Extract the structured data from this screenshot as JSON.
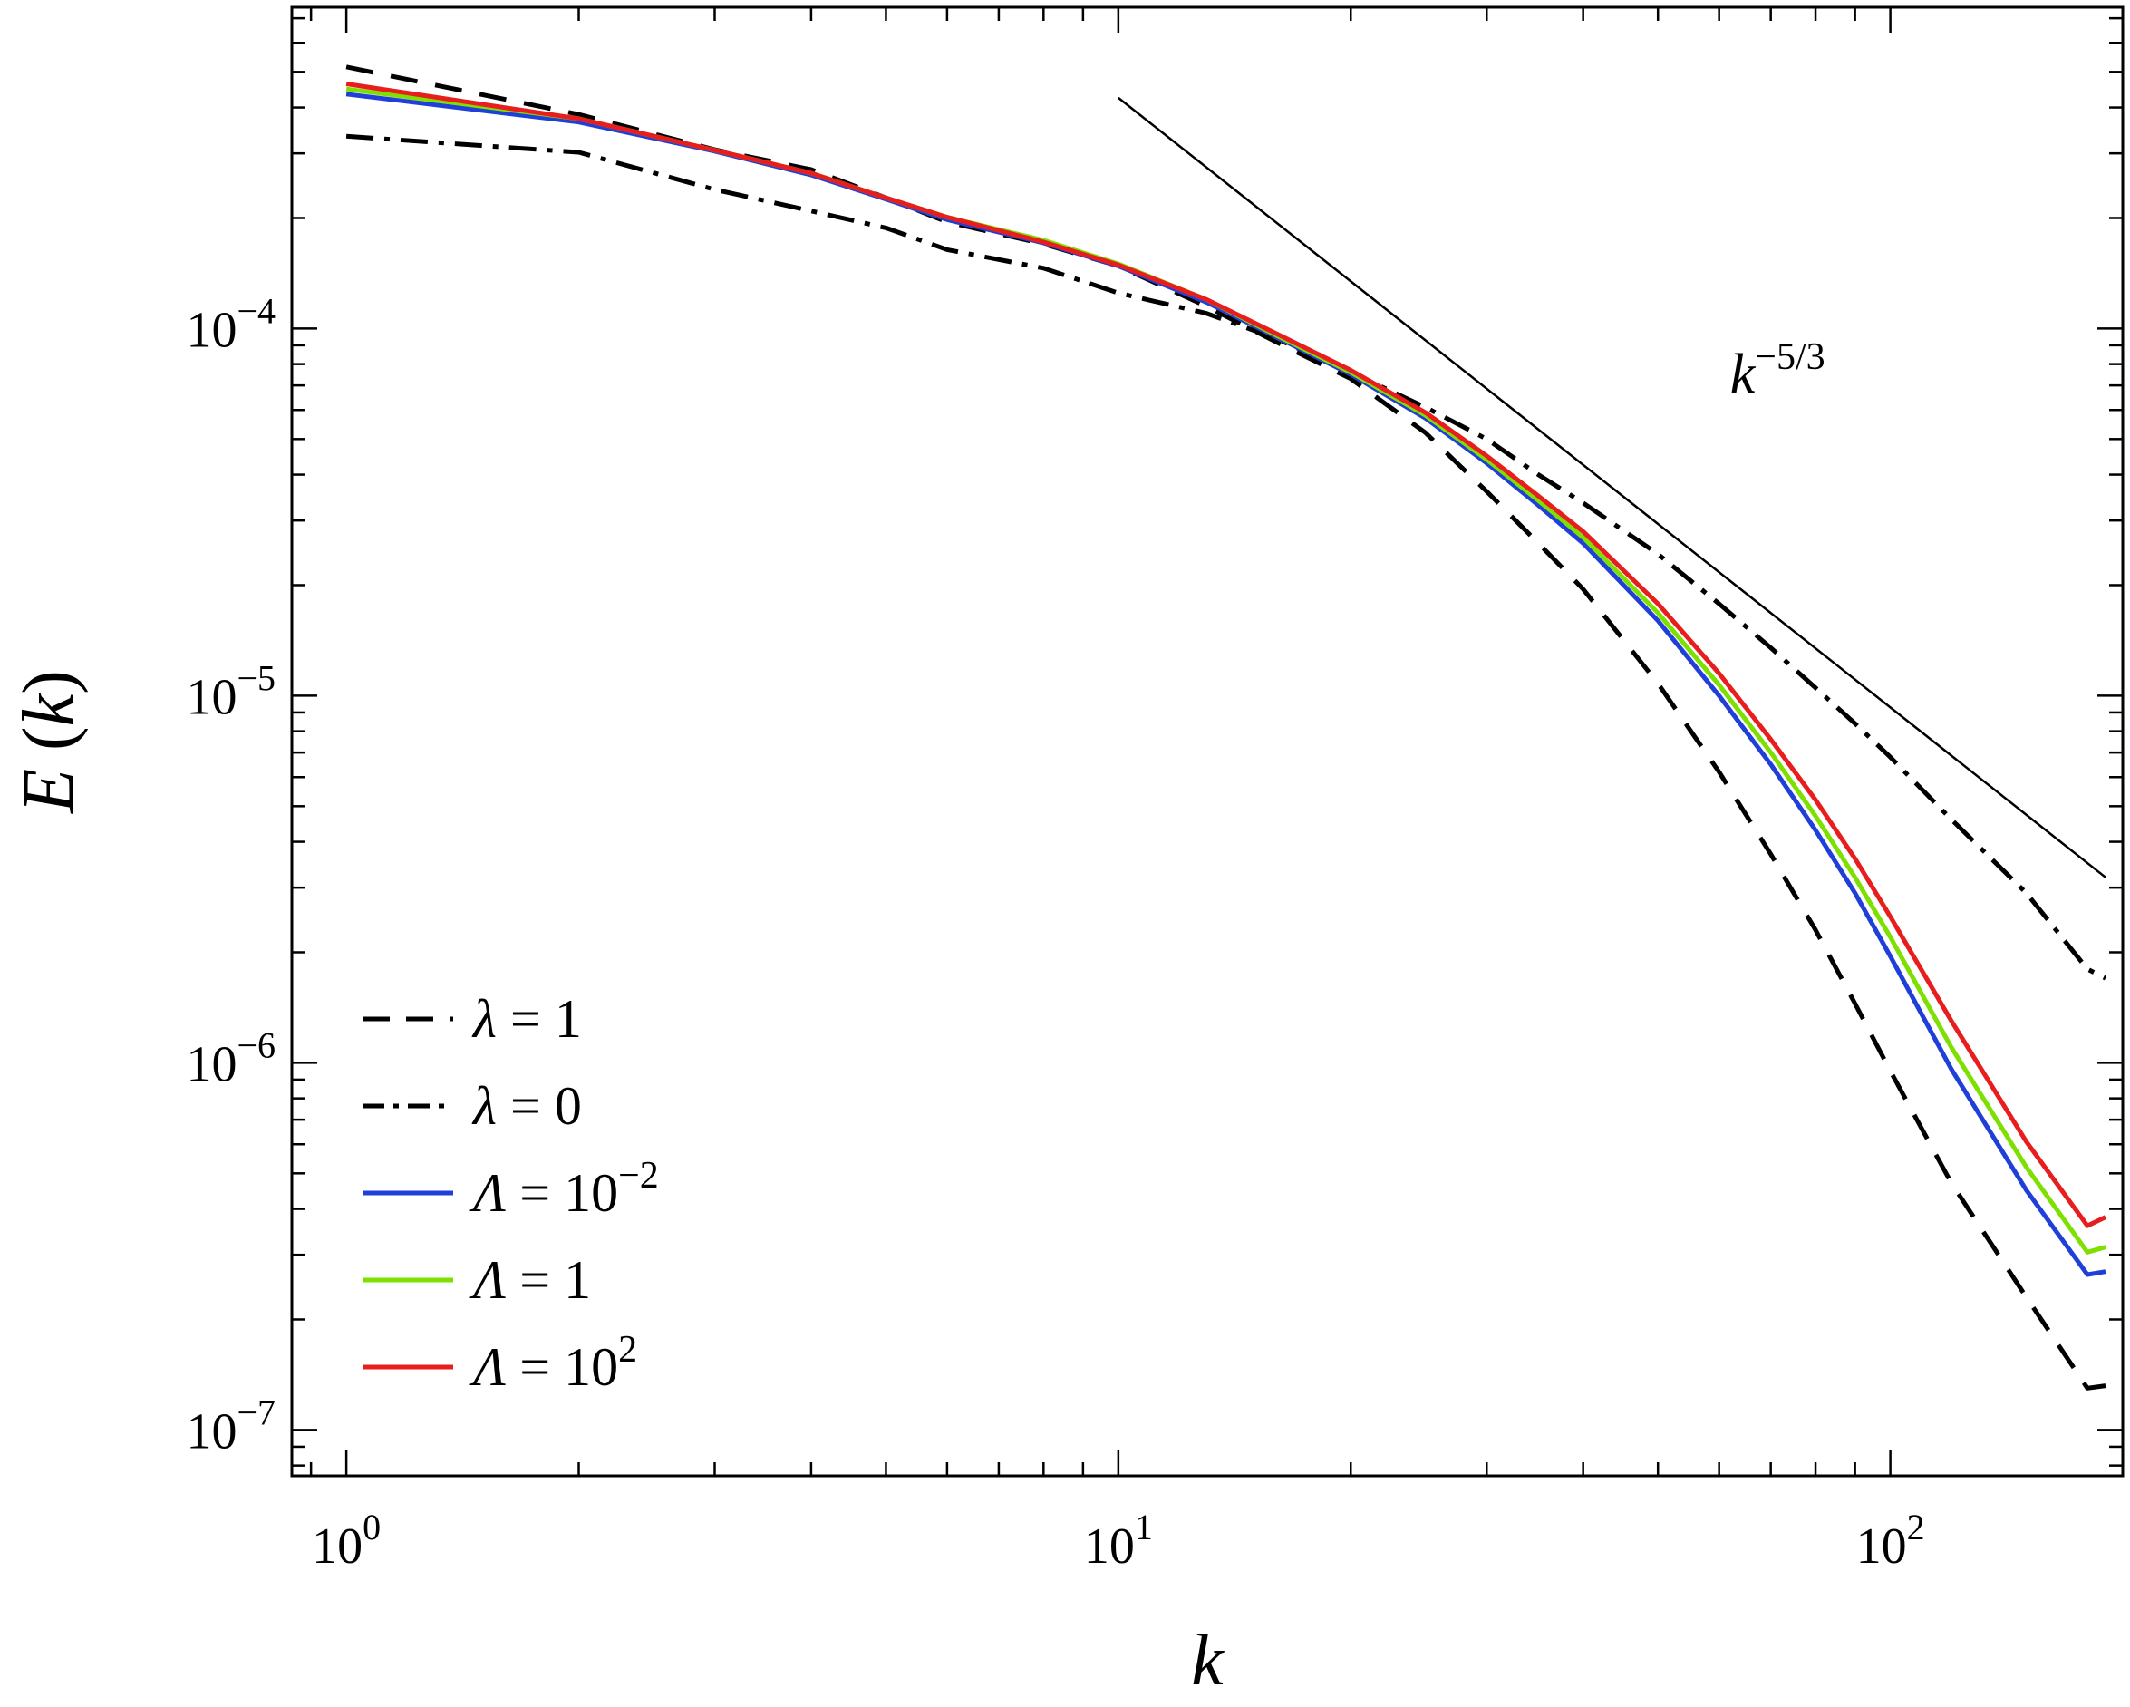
{
  "chart_data": {
    "type": "line",
    "xscale": "log",
    "yscale": "log",
    "xlim": [
      0.85,
      200
    ],
    "ylim": [
      7.5e-08,
      0.00075
    ],
    "xlabel": {
      "italic": "k"
    },
    "ylabel": {
      "italic_1": "E",
      "open": " (",
      "italic_2": "k",
      "close": ")"
    },
    "xticks": [
      {
        "value": 1,
        "base": "10",
        "exp": "0"
      },
      {
        "value": 10,
        "base": "10",
        "exp": "1"
      },
      {
        "value": 100,
        "base": "10",
        "exp": "2"
      }
    ],
    "yticks": [
      {
        "value": 1e-07,
        "base": "10",
        "exp": "−7"
      },
      {
        "value": 1e-06,
        "base": "10",
        "exp": "−6"
      },
      {
        "value": 1e-05,
        "base": "10",
        "exp": "−5"
      },
      {
        "value": 0.0001,
        "base": "10",
        "exp": "−4"
      }
    ],
    "grid": false,
    "legend_position": "bottom-left",
    "series": [
      {
        "label": {
          "symbol": "λ",
          "rest": " = 1"
        },
        "color": "#000000",
        "dash": "dashed",
        "x": [
          1,
          2,
          3,
          4,
          5,
          6,
          8,
          10,
          13,
          16,
          20,
          25,
          30,
          35,
          40,
          50,
          60,
          70,
          80,
          90,
          100,
          120,
          150,
          180,
          190
        ],
        "y": [
          0.000516,
          0.000383,
          0.000307,
          0.000271,
          0.000227,
          0.000195,
          0.00017,
          0.000148,
          0.000115,
          9.2e-05,
          7.3e-05,
          5.2e-05,
          3.6e-05,
          2.6e-05,
          1.95e-05,
          1.08e-05,
          6.2e-06,
          3.7e-06,
          2.3e-06,
          1.45e-06,
          9.5e-07,
          4.7e-07,
          2.3e-07,
          1.3e-07,
          1.32e-07
        ]
      },
      {
        "label": {
          "symbol": "λ",
          "rest": " = 0"
        },
        "color": "#000000",
        "dash": "dashdot",
        "x": [
          1,
          2,
          3,
          4,
          5,
          6,
          8,
          10,
          13,
          16,
          20,
          25,
          30,
          35,
          40,
          50,
          60,
          70,
          80,
          90,
          100,
          120,
          150,
          180,
          190
        ],
        "y": [
          0.000334,
          0.000302,
          0.000239,
          0.000209,
          0.000188,
          0.000164,
          0.000146,
          0.000125,
          0.00011,
          9.4e-05,
          7.6e-05,
          6.1e-05,
          5e-05,
          4e-05,
          3.35e-05,
          2.43e-05,
          1.78e-05,
          1.35e-05,
          1.05e-05,
          8.4e-06,
          6.8e-06,
          4.6e-06,
          2.9e-06,
          1.8e-06,
          1.7e-06
        ]
      },
      {
        "label": {
          "symbol": "Λ",
          "rest": " = 10",
          "sup": "−2"
        },
        "color": "#1f3fd8",
        "dash": "solid",
        "x": [
          1,
          2,
          3,
          4,
          5,
          6,
          8,
          10,
          13,
          16,
          20,
          25,
          30,
          35,
          40,
          50,
          60,
          70,
          80,
          90,
          100,
          120,
          150,
          180,
          190
        ],
        "y": [
          0.000435,
          0.000365,
          0.000304,
          0.000262,
          0.000225,
          0.000198,
          0.000171,
          0.000148,
          0.000118,
          9.5e-05,
          7.5e-05,
          5.7e-05,
          4.3e-05,
          3.3e-05,
          2.6e-05,
          1.6e-05,
          1e-05,
          6.5e-06,
          4.3e-06,
          2.9e-06,
          1.95e-06,
          9.6e-07,
          4.5e-07,
          2.65e-07,
          2.7e-07
        ]
      },
      {
        "label": {
          "symbol": "Λ",
          "rest": " = 1"
        },
        "color": "#7ee000",
        "dash": "solid",
        "x": [
          1,
          2,
          3,
          4,
          5,
          6,
          8,
          10,
          13,
          16,
          20,
          25,
          30,
          35,
          40,
          50,
          60,
          70,
          80,
          90,
          100,
          120,
          150,
          180,
          190
        ],
        "y": [
          0.000449,
          0.000373,
          0.000306,
          0.000265,
          0.000227,
          0.000201,
          0.000174,
          0.00015,
          0.00012,
          9.6e-05,
          7.6e-05,
          5.8e-05,
          4.4e-05,
          3.4e-05,
          2.7e-05,
          1.68e-05,
          1.07e-05,
          7e-06,
          4.7e-06,
          3.2e-06,
          2.2e-06,
          1.1e-06,
          5.2e-07,
          3.05e-07,
          3.15e-07
        ]
      },
      {
        "label": {
          "symbol": "Λ",
          "rest": " = 10",
          "sup": "2"
        },
        "color": "#e81e1e",
        "dash": "solid",
        "x": [
          1,
          2,
          3,
          4,
          5,
          6,
          8,
          10,
          13,
          16,
          20,
          25,
          30,
          35,
          40,
          50,
          60,
          70,
          80,
          90,
          100,
          120,
          150,
          180,
          190
        ],
        "y": [
          0.000464,
          0.000373,
          0.000306,
          0.000265,
          0.000227,
          0.000201,
          0.000172,
          0.000149,
          0.00012,
          9.7e-05,
          7.7e-05,
          5.9e-05,
          4.5e-05,
          3.5e-05,
          2.8e-05,
          1.78e-05,
          1.15e-05,
          7.6e-06,
          5.2e-06,
          3.6e-06,
          2.5e-06,
          1.3e-06,
          6.1e-07,
          3.6e-07,
          3.8e-07
        ]
      }
    ],
    "reference_line": {
      "color": "#000000",
      "x": [
        10,
        190
      ],
      "y": [
        0.000425,
        3.2e-06
      ]
    },
    "annotation": {
      "base": "k",
      "exp": "−5/3",
      "x": 62,
      "y": 6.7e-05
    }
  }
}
